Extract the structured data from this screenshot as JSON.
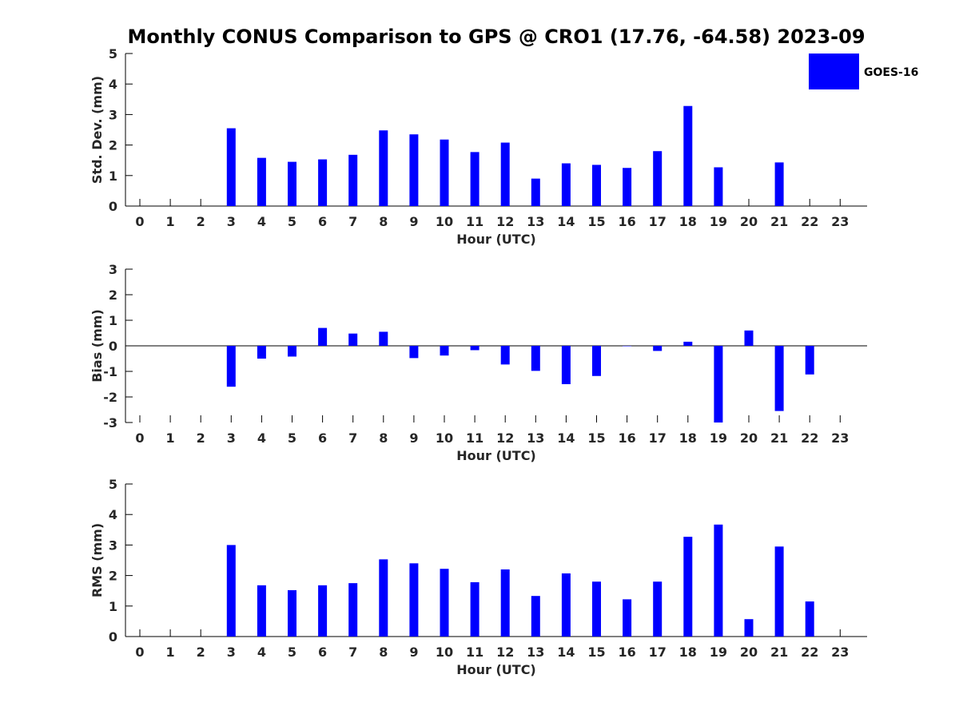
{
  "title": "Monthly CONUS Comparison to GPS @ CRO1 (17.76, -64.58) 2023-09",
  "legend": {
    "label": "GOES-16",
    "color": "#0000ff",
    "placement": "top-right"
  },
  "chart_data": [
    {
      "type": "bar",
      "xlabel": "Hour (UTC)",
      "ylabel": "Std. Dev. (mm)",
      "ylim": [
        0,
        5
      ],
      "yticks": [
        "0",
        "1",
        "2",
        "3",
        "4",
        "5"
      ],
      "categories": [
        "0",
        "1",
        "2",
        "3",
        "4",
        "5",
        "6",
        "7",
        "8",
        "9",
        "10",
        "11",
        "12",
        "13",
        "14",
        "15",
        "16",
        "17",
        "18",
        "19",
        "20",
        "21",
        "22",
        "23"
      ],
      "series": [
        {
          "name": "GOES-16",
          "color": "#0000ff",
          "values": [
            null,
            null,
            null,
            2.55,
            1.58,
            1.45,
            1.53,
            1.68,
            2.48,
            2.35,
            2.18,
            1.77,
            2.08,
            0.9,
            1.4,
            1.35,
            1.25,
            1.8,
            3.28,
            1.27,
            null,
            1.43,
            null,
            null
          ]
        }
      ]
    },
    {
      "type": "bar",
      "xlabel": "Hour (UTC)",
      "ylabel": "Bias (mm)",
      "ylim": [
        -3,
        3
      ],
      "yticks": [
        "-3",
        "-2",
        "-1",
        "0",
        "1",
        "2",
        "3"
      ],
      "categories": [
        "0",
        "1",
        "2",
        "3",
        "4",
        "5",
        "6",
        "7",
        "8",
        "9",
        "10",
        "11",
        "12",
        "13",
        "14",
        "15",
        "16",
        "17",
        "18",
        "19",
        "20",
        "21",
        "22",
        "23"
      ],
      "series": [
        {
          "name": "GOES-16",
          "color": "#0000ff",
          "values": [
            null,
            null,
            null,
            -1.6,
            -0.5,
            -0.42,
            0.7,
            0.48,
            0.55,
            -0.48,
            -0.38,
            -0.17,
            -0.73,
            -0.98,
            -1.5,
            -1.18,
            0.0,
            -0.2,
            0.16,
            -3.0,
            0.6,
            -2.55,
            -1.12,
            null
          ]
        }
      ]
    },
    {
      "type": "bar",
      "xlabel": "Hour (UTC)",
      "ylabel": "RMS (mm)",
      "ylim": [
        0,
        5
      ],
      "yticks": [
        "0",
        "1",
        "2",
        "3",
        "4",
        "5"
      ],
      "categories": [
        "0",
        "1",
        "2",
        "3",
        "4",
        "5",
        "6",
        "7",
        "8",
        "9",
        "10",
        "11",
        "12",
        "13",
        "14",
        "15",
        "16",
        "17",
        "18",
        "19",
        "20",
        "21",
        "22",
        "23"
      ],
      "series": [
        {
          "name": "GOES-16",
          "color": "#0000ff",
          "values": [
            null,
            null,
            null,
            3.0,
            1.68,
            1.52,
            1.68,
            1.75,
            2.53,
            2.4,
            2.22,
            1.78,
            2.2,
            1.33,
            2.07,
            1.8,
            1.22,
            1.8,
            3.27,
            3.67,
            0.57,
            2.95,
            1.15,
            null
          ]
        }
      ]
    }
  ]
}
